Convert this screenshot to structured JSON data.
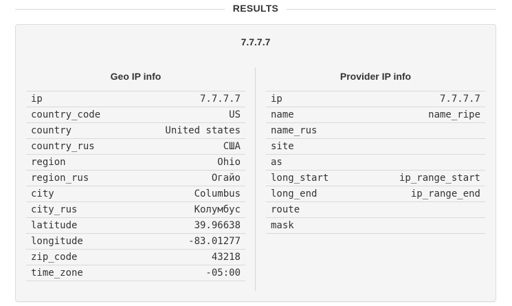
{
  "section": {
    "title": "RESULTS"
  },
  "result": {
    "ip": "7.7.7.7",
    "geo": {
      "title": "Geo IP info",
      "rows": [
        {
          "key": "ip",
          "value": "7.7.7.7"
        },
        {
          "key": "country_code",
          "value": "US"
        },
        {
          "key": "country",
          "value": "United states"
        },
        {
          "key": "country_rus",
          "value": "США"
        },
        {
          "key": "region",
          "value": "Ohio"
        },
        {
          "key": "region_rus",
          "value": "Огайо"
        },
        {
          "key": "city",
          "value": "Columbus"
        },
        {
          "key": "city_rus",
          "value": "Колумбус"
        },
        {
          "key": "latitude",
          "value": "39.96638"
        },
        {
          "key": "longitude",
          "value": "-83.01277"
        },
        {
          "key": "zip_code",
          "value": "43218"
        },
        {
          "key": "time_zone",
          "value": "-05:00"
        }
      ]
    },
    "provider": {
      "title": "Provider IP info",
      "rows": [
        {
          "key": "ip",
          "value": "7.7.7.7"
        },
        {
          "key": "name",
          "value": "name_ripe"
        },
        {
          "key": "name_rus",
          "value": ""
        },
        {
          "key": "site",
          "value": ""
        },
        {
          "key": "as",
          "value": ""
        },
        {
          "key": "long_start",
          "value": "ip_range_start"
        },
        {
          "key": "long_end",
          "value": "ip_range_end"
        },
        {
          "key": "route",
          "value": ""
        },
        {
          "key": "mask",
          "value": ""
        }
      ]
    }
  }
}
